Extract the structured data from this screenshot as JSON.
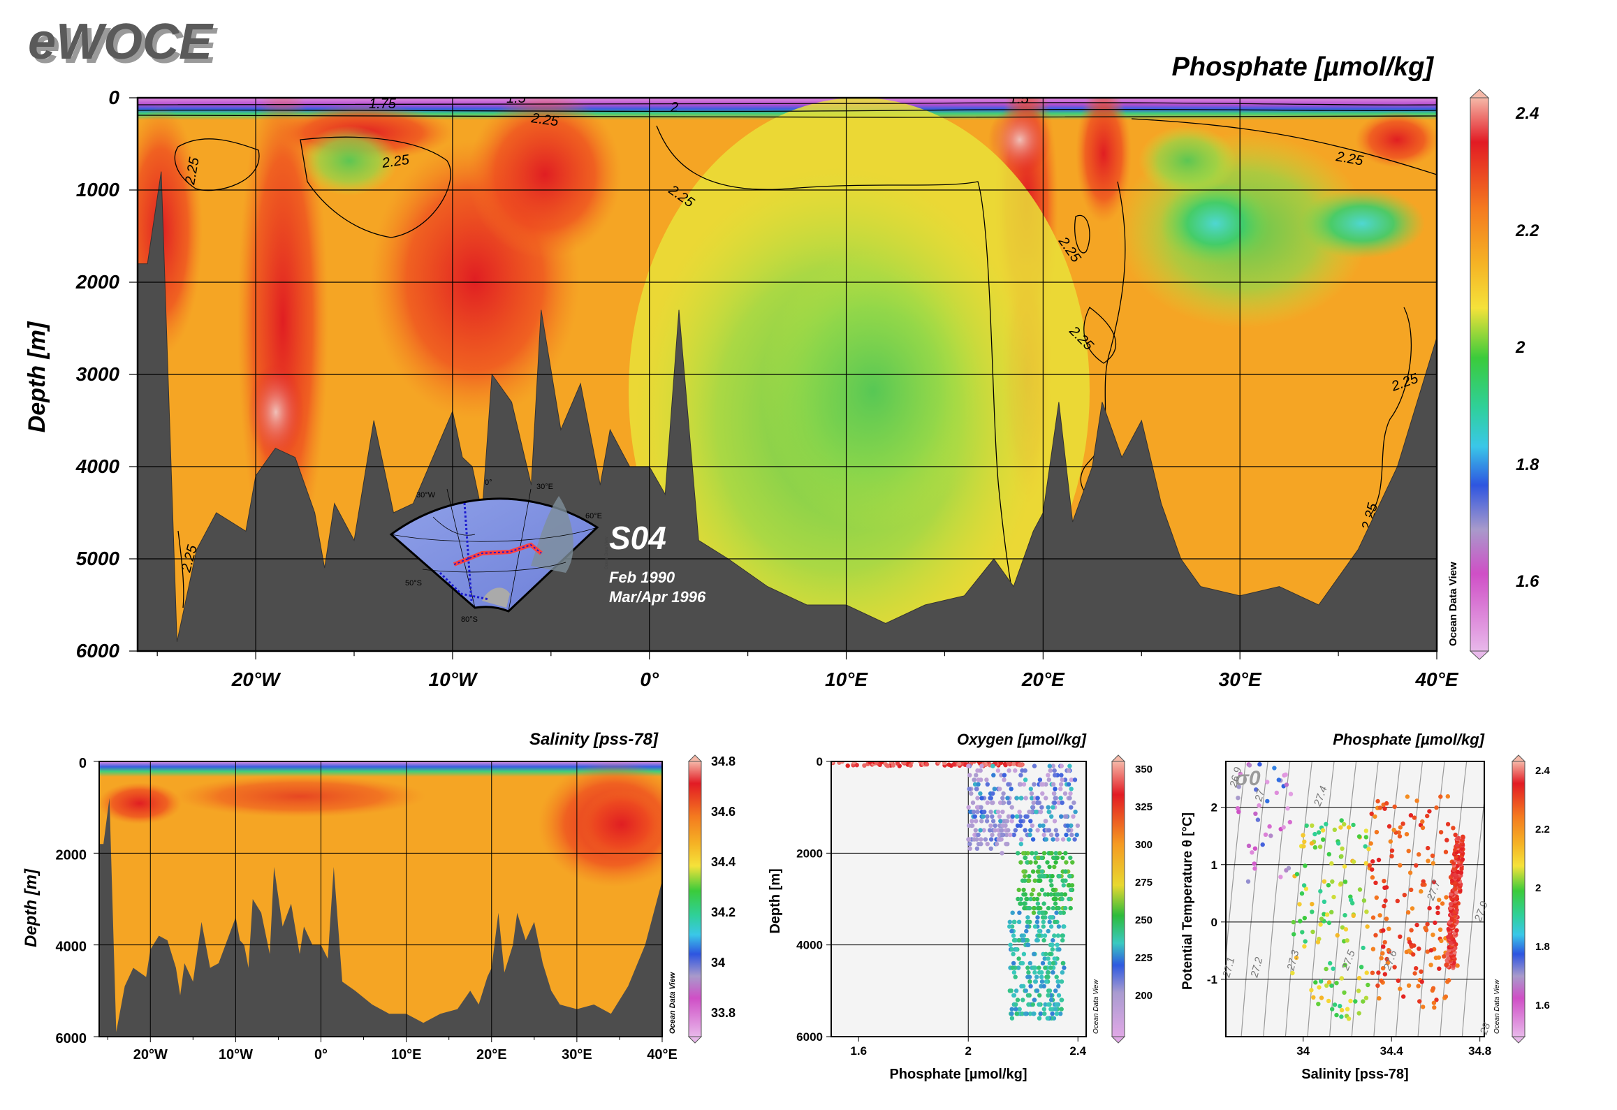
{
  "brand": {
    "logo": "eWOCE"
  },
  "colors": {
    "bathymetry": "#4d4d4d",
    "panel_bg": "#f4f4f4",
    "grid": "#000000"
  },
  "main_section": {
    "title": "Phosphate [µmol/kg]",
    "ylabel": "Depth [m]",
    "y_ticks": [
      "0",
      "1000",
      "2000",
      "3000",
      "4000",
      "5000",
      "6000"
    ],
    "x_ticks": [
      "20°W",
      "10°W",
      "0°",
      "10°E",
      "20°E",
      "30°E",
      "40°E"
    ],
    "contour_labels": [
      "1.75",
      "1.5",
      "2.25",
      "2",
      "2.25",
      "2.25",
      "2.25",
      "2.25",
      "1.5",
      "2.25",
      "2.25",
      "2.25",
      "2.25",
      "2.25",
      "2.25"
    ],
    "colorbar_ticks": [
      "2.4",
      "2.2",
      "2",
      "1.8",
      "1.6"
    ],
    "credit": "Ocean Data View",
    "inset": {
      "section_name": "S04",
      "dates": [
        "Feb 1990",
        "Mar/Apr 1996"
      ],
      "map_labels": [
        "30°W",
        "0°",
        "30°E",
        "60°E",
        "50°S",
        "80°S",
        "Ocean Data View"
      ]
    }
  },
  "salinity_section": {
    "title": "Salinity [pss-78]",
    "ylabel": "Depth [m]",
    "y_ticks": [
      "0",
      "2000",
      "4000",
      "6000"
    ],
    "x_ticks": [
      "20°W",
      "10°W",
      "0°",
      "10°E",
      "20°E",
      "30°E",
      "40°E"
    ],
    "colorbar_ticks": [
      "34.8",
      "34.6",
      "34.4",
      "34.2",
      "34",
      "33.8"
    ],
    "credit": "Ocean Data View"
  },
  "oxygen_scatter": {
    "title": "Oxygen [µmol/kg]",
    "xlabel": "Phosphate [µmol/kg]",
    "ylabel": "Depth [m]",
    "x_ticks": [
      "1.6",
      "2",
      "2.4"
    ],
    "y_ticks": [
      "0",
      "2000",
      "4000",
      "6000"
    ],
    "colorbar_ticks": [
      "350",
      "325",
      "300",
      "275",
      "250",
      "225",
      "200"
    ],
    "credit": "Ocean Data View"
  },
  "ts_diagram": {
    "title": "Phosphate [µmol/kg]",
    "xlabel": "Salinity [pss-78]",
    "ylabel": "Potential Temperature θ [°C]",
    "sigma_label": "σ0",
    "x_ticks": [
      "34",
      "34.4",
      "34.8"
    ],
    "y_ticks": [
      "2",
      "1",
      "0",
      "-1"
    ],
    "isopycnal_labels": [
      "27.1",
      "27.2",
      "27.3",
      "27.4",
      "27.5",
      "27.6",
      "27.7",
      "27.9",
      "28",
      "26.9",
      "27"
    ],
    "colorbar_ticks": [
      "2.4",
      "2.2",
      "2",
      "1.8",
      "1.6"
    ],
    "credit": "Ocean Data View"
  },
  "chart_data": [
    {
      "type": "heatmap",
      "title": "Phosphate [µmol/kg]",
      "xlabel": "",
      "ylabel": "Depth [m]",
      "xlim": [
        -26,
        40
      ],
      "ylim": [
        6000,
        0
      ],
      "colorbar_range": [
        1.48,
        2.43
      ],
      "bathymetry_depth_m": [
        [
          -25.5,
          1800
        ],
        [
          -24.8,
          800
        ],
        [
          -24,
          5900
        ],
        [
          -23,
          4900
        ],
        [
          -22,
          4500
        ],
        [
          -20.5,
          4700
        ],
        [
          -20,
          4100
        ],
        [
          -19,
          3800
        ],
        [
          -18,
          3900
        ],
        [
          -17,
          4500
        ],
        [
          -16.5,
          5100
        ],
        [
          -16,
          4400
        ],
        [
          -15,
          4800
        ],
        [
          -14,
          3500
        ],
        [
          -13,
          4500
        ],
        [
          -12,
          4400
        ],
        [
          -11,
          3900
        ],
        [
          -10,
          3400
        ],
        [
          -9.5,
          3900
        ],
        [
          -9,
          4000
        ],
        [
          -8.5,
          4500
        ],
        [
          -8,
          3000
        ],
        [
          -7,
          3300
        ],
        [
          -6,
          4200
        ],
        [
          -5.5,
          2300
        ],
        [
          -4.5,
          3600
        ],
        [
          -3.5,
          3100
        ],
        [
          -2.5,
          4200
        ],
        [
          -2,
          3600
        ],
        [
          -1,
          4000
        ],
        [
          0,
          4000
        ],
        [
          0.8,
          4300
        ],
        [
          1.5,
          2300
        ],
        [
          2.5,
          4800
        ],
        [
          4,
          5000
        ],
        [
          6,
          5300
        ],
        [
          8,
          5500
        ],
        [
          10,
          5500
        ],
        [
          12,
          5700
        ],
        [
          14,
          5500
        ],
        [
          16,
          5400
        ],
        [
          17.5,
          5000
        ],
        [
          18.5,
          5300
        ],
        [
          19.5,
          4700
        ],
        [
          20,
          4500
        ],
        [
          20.8,
          3300
        ],
        [
          21.5,
          4600
        ],
        [
          22.5,
          4000
        ],
        [
          23,
          3300
        ],
        [
          24,
          3900
        ],
        [
          25,
          3500
        ],
        [
          26,
          4400
        ],
        [
          27,
          5000
        ],
        [
          28,
          5300
        ],
        [
          30,
          5400
        ],
        [
          32,
          5300
        ],
        [
          34,
          5500
        ],
        [
          36,
          4900
        ],
        [
          38,
          4000
        ],
        [
          40,
          2600
        ]
      ],
      "contour_levels": [
        1.5,
        1.75,
        2,
        2.25
      ]
    },
    {
      "type": "heatmap",
      "title": "Salinity [pss-78]",
      "ylabel": "Depth [m]",
      "xlim": [
        -26,
        40
      ],
      "ylim": [
        6000,
        0
      ],
      "colorbar_range": [
        33.7,
        34.8
      ]
    },
    {
      "type": "scatter",
      "title": "Oxygen [µmol/kg]",
      "xlabel": "Phosphate [µmol/kg]",
      "ylabel": "Depth [m]",
      "xlim": [
        1.5,
        2.43
      ],
      "ylim": [
        6000,
        0
      ],
      "clusters": [
        {
          "phosphate": [
            1.5,
            2.2
          ],
          "depth": [
            0,
            100
          ],
          "oxygen": [
            330,
            350
          ]
        },
        {
          "phosphate": [
            2.0,
            2.4
          ],
          "depth": [
            100,
            1800
          ],
          "oxygen": [
            190,
            240
          ]
        },
        {
          "phosphate": [
            2.0,
            2.15
          ],
          "depth": [
            1300,
            2000
          ],
          "oxygen": [
            200,
            215
          ]
        },
        {
          "phosphate": [
            2.18,
            2.38
          ],
          "depth": [
            2000,
            3300
          ],
          "oxygen": [
            245,
            265
          ]
        },
        {
          "phosphate": [
            2.15,
            2.35
          ],
          "depth": [
            3300,
            5600
          ],
          "oxygen": [
            230,
            250
          ]
        }
      ]
    },
    {
      "type": "scatter",
      "title": "Phosphate [µmol/kg]",
      "xlabel": "Salinity [pss-78]",
      "ylabel": "Potential Temperature θ [°C]",
      "xlim": [
        33.65,
        34.82
      ],
      "ylim": [
        -2,
        2.8
      ],
      "clusters": [
        {
          "salinity": [
            33.68,
            33.95
          ],
          "theta": [
            0.5,
            2.8
          ],
          "phosphate": [
            1.5,
            1.8
          ]
        },
        {
          "salinity": [
            33.95,
            34.3
          ],
          "theta": [
            -1.7,
            1.8
          ],
          "phosphate": [
            1.9,
            2.15
          ]
        },
        {
          "salinity": [
            34.3,
            34.7
          ],
          "theta": [
            -1.5,
            2.2
          ],
          "phosphate": [
            2.2,
            2.35
          ]
        },
        {
          "salinity": [
            34.65,
            34.72
          ],
          "theta": [
            -0.8,
            1.5
          ],
          "phosphate": [
            2.3,
            2.4
          ]
        }
      ]
    }
  ]
}
